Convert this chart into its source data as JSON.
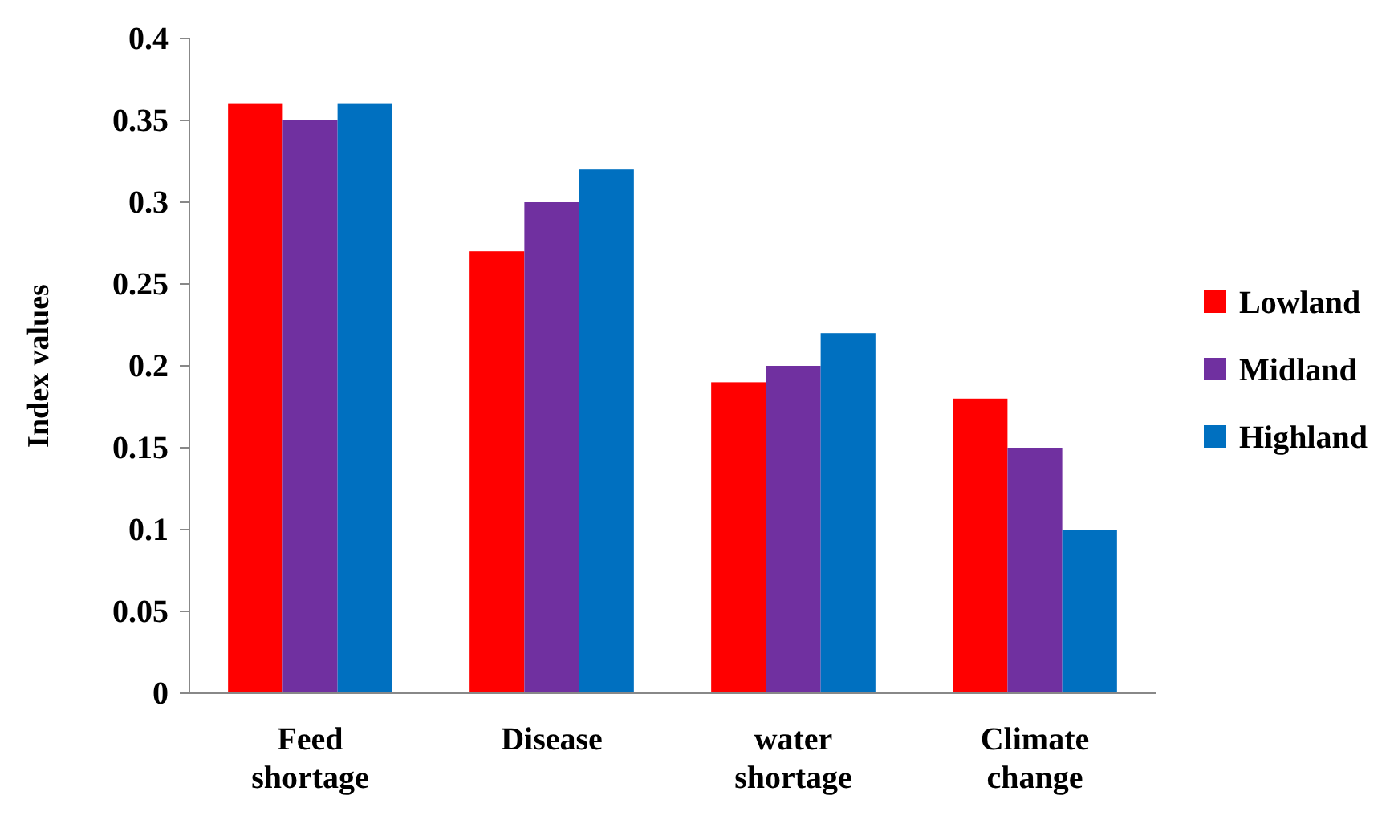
{
  "chart_data": {
    "type": "bar",
    "ylabel": "Index values",
    "categories": [
      "Feed shortage",
      "Disease",
      "water shortage",
      "Climate change"
    ],
    "series": [
      {
        "name": "Lowland",
        "color": "#ff0000",
        "values": [
          0.36,
          0.27,
          0.19,
          0.18
        ]
      },
      {
        "name": "Midland",
        "color": "#7030a0",
        "values": [
          0.35,
          0.3,
          0.2,
          0.15
        ]
      },
      {
        "name": "Highland",
        "color": "#0070c0",
        "values": [
          0.36,
          0.32,
          0.22,
          0.1
        ]
      }
    ],
    "ylim": [
      0,
      0.4
    ],
    "yticks": [
      0,
      {
        "value": 0.05,
        "label": "0.05"
      },
      {
        "value": 0.1,
        "label": "0.1"
      },
      {
        "value": 0.15,
        "label": "0.15"
      },
      {
        "value": 0.2,
        "label": "0.2"
      },
      {
        "value": 0.25,
        "label": "0.25"
      },
      {
        "value": 0.3,
        "label": "0.3"
      },
      {
        "value": 0.35,
        "label": "0.35"
      },
      {
        "value": 0.4,
        "label": "0.4"
      }
    ],
    "grid": false,
    "legend": "right"
  }
}
